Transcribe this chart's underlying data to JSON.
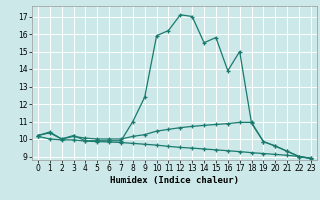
{
  "xlabel": "Humidex (Indice chaleur)",
  "background_color": "#cce8e8",
  "grid_color": "#ffffff",
  "line_color": "#1a7a6e",
  "xlim": [
    -0.5,
    23.5
  ],
  "ylim": [
    8.8,
    17.6
  ],
  "yticks": [
    9,
    10,
    11,
    12,
    13,
    14,
    15,
    16,
    17
  ],
  "xticks": [
    0,
    1,
    2,
    3,
    4,
    5,
    6,
    7,
    8,
    9,
    10,
    11,
    12,
    13,
    14,
    15,
    16,
    17,
    18,
    19,
    20,
    21,
    22,
    23
  ],
  "line1_x": [
    0,
    1,
    2,
    3,
    4,
    5,
    6,
    7,
    8,
    9,
    10,
    11,
    12,
    13,
    14,
    15,
    16,
    17,
    18,
    19,
    20,
    21,
    22,
    23
  ],
  "line1_y": [
    10.2,
    10.4,
    10.0,
    10.2,
    9.9,
    9.9,
    9.9,
    9.9,
    11.0,
    12.4,
    15.9,
    16.2,
    17.1,
    17.0,
    15.5,
    15.8,
    13.9,
    15.0,
    10.9,
    9.85,
    9.6,
    9.3,
    9.0,
    8.9
  ],
  "line2_x": [
    0,
    1,
    2,
    3,
    4,
    5,
    6,
    7,
    8,
    9,
    10,
    11,
    12,
    13,
    14,
    15,
    16,
    17,
    18,
    19,
    20,
    21,
    22,
    23
  ],
  "line2_y": [
    10.2,
    10.35,
    10.0,
    10.15,
    10.05,
    10.0,
    10.0,
    10.0,
    10.15,
    10.25,
    10.45,
    10.55,
    10.65,
    10.72,
    10.78,
    10.83,
    10.88,
    10.95,
    10.95,
    9.85,
    9.6,
    9.3,
    9.0,
    8.9
  ],
  "line3_x": [
    0,
    1,
    2,
    3,
    4,
    5,
    6,
    7,
    8,
    9,
    10,
    11,
    12,
    13,
    14,
    15,
    16,
    17,
    18,
    19,
    20,
    21,
    22,
    23
  ],
  "line3_y": [
    10.15,
    10.0,
    9.95,
    9.95,
    9.88,
    9.85,
    9.83,
    9.8,
    9.75,
    9.7,
    9.65,
    9.58,
    9.52,
    9.48,
    9.43,
    9.38,
    9.33,
    9.28,
    9.22,
    9.17,
    9.12,
    9.07,
    9.0,
    8.88
  ]
}
